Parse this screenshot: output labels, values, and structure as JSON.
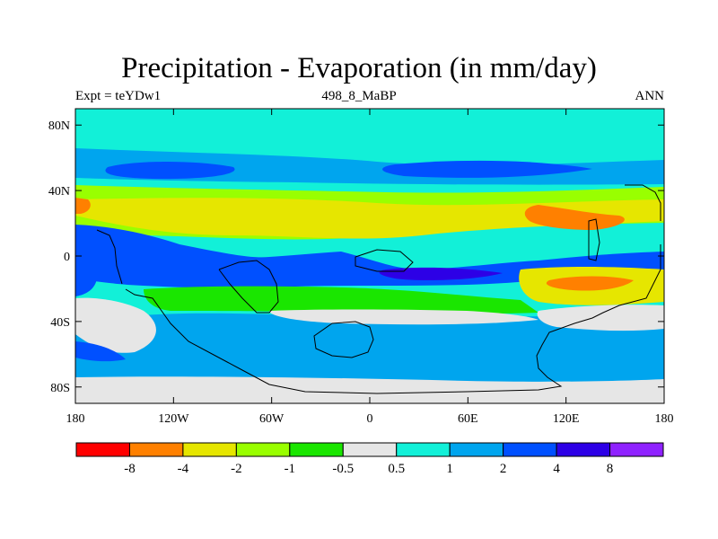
{
  "title": "Precipitation - Evaporation (in mm/day)",
  "subtitle_left": "Expt = teYDw1",
  "subtitle_center": "498_8_MaBP",
  "subtitle_right": "ANN",
  "colors": {
    "ocean_background": "#12f0d8",
    "near_zero": "#e6e6e6",
    "coastline": "#000000"
  },
  "map": {
    "projection": "cylindrical equidistant",
    "lon_range": [
      -180,
      180
    ],
    "lat_range": [
      -90,
      90
    ],
    "x_ticks": [
      "180",
      "120W",
      "60W",
      "0",
      "60E",
      "120E",
      "180"
    ],
    "y_ticks": [
      "80N",
      "40N",
      "0",
      "40S",
      "80S"
    ]
  },
  "colorbar": {
    "colors": [
      "#ff0000",
      "#ff8000",
      "#e6e600",
      "#99ff00",
      "#1ae600",
      "#e6e6e6",
      "#12f0d8",
      "#00a5ee",
      "#0050ff",
      "#2d00e6",
      "#8f22ff"
    ],
    "labels": [
      "-8",
      "-4",
      "-2",
      "-1",
      "-0.5",
      "0.5",
      "1",
      "2",
      "4",
      "8"
    ]
  }
}
